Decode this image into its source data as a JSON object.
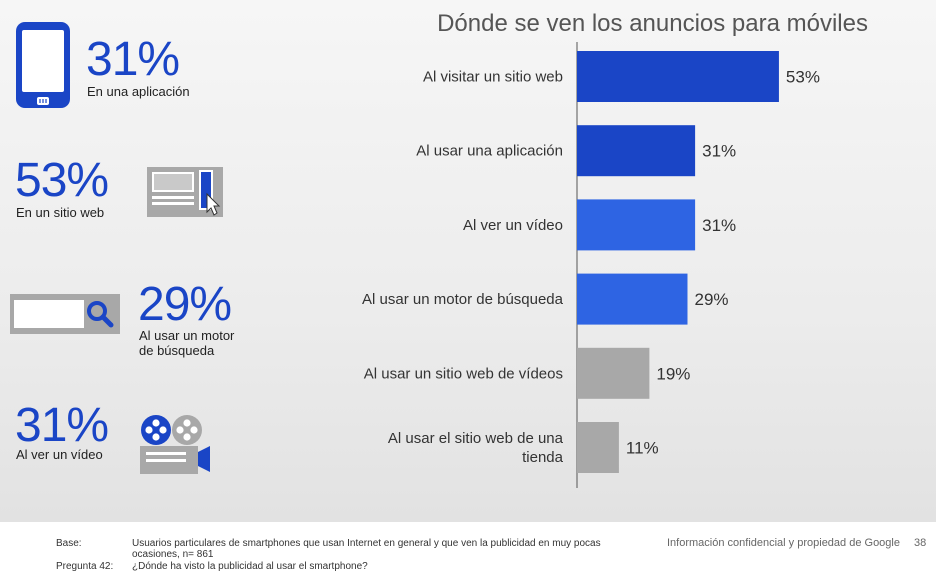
{
  "left_panel": {
    "app": {
      "value": "31%",
      "label": "En una aplicación"
    },
    "web": {
      "value": "53%",
      "label": "En un sitio web"
    },
    "search": {
      "value": "29%",
      "label_line1": "Al usar un motor",
      "label_line2": "de búsqueda"
    },
    "video": {
      "value": "31%",
      "label": "Al ver un vídeo"
    },
    "icons": [
      "smartphone-icon",
      "web-page-icon",
      "search-bar-icon",
      "film-projector-icon"
    ]
  },
  "chart_data": {
    "type": "bar",
    "orientation": "horizontal",
    "title": "Dónde se ven los anuncios para móviles",
    "categories": [
      "Al visitar un sitio web",
      "Al usar una aplicación",
      "Al ver un vídeo",
      "Al usar un motor de búsqueda",
      "Al usar un sitio web de vídeos",
      "Al usar el sitio web de una tienda"
    ],
    "values": [
      53,
      31,
      31,
      29,
      19,
      11
    ],
    "value_labels": [
      "53%",
      "31%",
      "31%",
      "29%",
      "19%",
      "11%"
    ],
    "colors": [
      "#1a45c6",
      "#1a45c6",
      "#2e64e3",
      "#2e64e3",
      "#a8a8a8",
      "#a8a8a8"
    ],
    "xlim": [
      0,
      100
    ],
    "grid": false,
    "legend": "none"
  },
  "footer": {
    "base_key": "Base:",
    "base_text_line1": "Usuarios particulares de smartphones que usan Internet en general y que ven la publicidad en muy pocas",
    "base_text_line2": "ocasiones, n= 861",
    "question_key": "Pregunta 42:",
    "question_text": "¿Dónde ha visto la publicidad al usar el smartphone?",
    "confidential": "Información confidencial y propiedad de Google",
    "page_number": "38"
  },
  "colors": {
    "primary_blue": "#1a45c6",
    "bright_blue": "#2e64e3",
    "gray_bar": "#a8a8a8"
  }
}
